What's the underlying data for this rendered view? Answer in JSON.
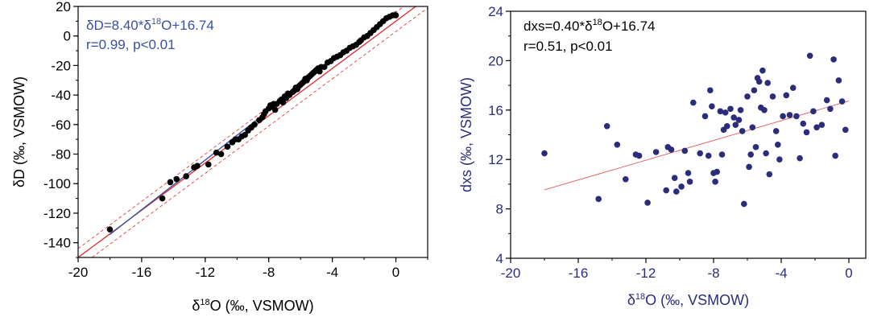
{
  "chart_data": [
    {
      "type": "scatter",
      "eq_prefix": "δD=8.40*δ",
      "eq_sup": "18",
      "eq_suffix": "O+16.74",
      "stats": "r=0.99, p<0.01",
      "xlabel_pre": "δ",
      "xlabel_sup": "18",
      "xlabel_post": "O (‰, VSMOW)",
      "ylabel": "δD (‰, VSMOW)",
      "xlim": [
        -20,
        2
      ],
      "ylim": [
        -150,
        20
      ],
      "xticks": [
        "-20",
        "-16",
        "-12",
        "-8",
        "-4",
        "0"
      ],
      "yticks": [
        "20",
        "0",
        "-20",
        "-40",
        "-60",
        "-80",
        "-100",
        "-120",
        "-140"
      ],
      "marker_color": "#000000",
      "text_color": "#3a4fa0",
      "fit_color": "#3a4fa0",
      "gmwl_color": "#e0292a",
      "gmwl": {
        "slope": 8,
        "intercept": 10
      },
      "fit": {
        "slope": 8.4,
        "intercept": 16.74
      },
      "points": [
        [
          -18.0,
          -131
        ],
        [
          -14.7,
          -110
        ],
        [
          -14.2,
          -99
        ],
        [
          -13.8,
          -97
        ],
        [
          -13.2,
          -95
        ],
        [
          -12.7,
          -89
        ],
        [
          -12.5,
          -88
        ],
        [
          -11.8,
          -87
        ],
        [
          -11.3,
          -79
        ],
        [
          -11.0,
          -80
        ],
        [
          -10.6,
          -75
        ],
        [
          -10.3,
          -72
        ],
        [
          -10.1,
          -70
        ],
        [
          -9.9,
          -70
        ],
        [
          -9.7,
          -68
        ],
        [
          -9.5,
          -67
        ],
        [
          -9.3,
          -64
        ],
        [
          -9.1,
          -62
        ],
        [
          -8.9,
          -60
        ],
        [
          -8.6,
          -57
        ],
        [
          -8.4,
          -55
        ],
        [
          -8.3,
          -53
        ],
        [
          -8.2,
          -51
        ],
        [
          -8.0,
          -49
        ],
        [
          -7.9,
          -47
        ],
        [
          -7.8,
          -48
        ],
        [
          -7.7,
          -46
        ],
        [
          -7.6,
          -50
        ],
        [
          -7.5,
          -46
        ],
        [
          -7.3,
          -44
        ],
        [
          -7.2,
          -43
        ],
        [
          -7.1,
          -45
        ],
        [
          -7.0,
          -41
        ],
        [
          -6.9,
          -42
        ],
        [
          -6.8,
          -39
        ],
        [
          -6.7,
          -40
        ],
        [
          -6.5,
          -38
        ],
        [
          -6.4,
          -37
        ],
        [
          -6.3,
          -35
        ],
        [
          -6.2,
          -36
        ],
        [
          -6.1,
          -34
        ],
        [
          -6.0,
          -33
        ],
        [
          -5.9,
          -32
        ],
        [
          -5.8,
          -31
        ],
        [
          -5.7,
          -29
        ],
        [
          -5.6,
          -30
        ],
        [
          -5.5,
          -28
        ],
        [
          -5.4,
          -27
        ],
        [
          -5.3,
          -26
        ],
        [
          -5.2,
          -25
        ],
        [
          -5.1,
          -24
        ],
        [
          -5.0,
          -23
        ],
        [
          -4.9,
          -22
        ],
        [
          -4.8,
          -24
        ],
        [
          -4.7,
          -21
        ],
        [
          -4.5,
          -21
        ],
        [
          -4.3,
          -18
        ],
        [
          -4.1,
          -17
        ],
        [
          -3.9,
          -15
        ],
        [
          -3.7,
          -14
        ],
        [
          -3.5,
          -13
        ],
        [
          -3.3,
          -11
        ],
        [
          -3.1,
          -10
        ],
        [
          -2.9,
          -8
        ],
        [
          -2.7,
          -7
        ],
        [
          -2.5,
          -6
        ],
        [
          -2.3,
          -4
        ],
        [
          -2.2,
          -3
        ],
        [
          -2.0,
          -1
        ],
        [
          -1.8,
          0
        ],
        [
          -1.6,
          2
        ],
        [
          -1.4,
          4
        ],
        [
          -1.2,
          6
        ],
        [
          -1.0,
          8
        ],
        [
          -0.8,
          10
        ],
        [
          -0.6,
          12
        ],
        [
          -0.4,
          13
        ],
        [
          -0.2,
          14
        ],
        [
          0.0,
          14
        ]
      ]
    },
    {
      "type": "scatter",
      "eq_prefix": "dxs=0.40*δ",
      "eq_sup": "18",
      "eq_suffix": "O+16.74",
      "stats": "r=0.51, p<0.01",
      "xlabel_pre": "δ",
      "xlabel_sup": "18",
      "xlabel_post": "O (‰, VSMOW)",
      "ylabel": "dxs (‰, VSMOW)",
      "xlim": [
        -20,
        1
      ],
      "ylim": [
        4,
        24
      ],
      "xticks": [
        "-20",
        "-16",
        "-12",
        "-8",
        "-4",
        "0"
      ],
      "yticks": [
        "24",
        "20",
        "16",
        "12",
        "8",
        "4"
      ],
      "marker_color": "#2b2c7a",
      "text_color": "#000000",
      "axis_label_color": "#2b2c7a",
      "fit_color": "#e05a5a",
      "fit": {
        "slope": 0.4,
        "intercept": 16.74
      },
      "points": [
        [
          -18.0,
          12.5
        ],
        [
          -14.8,
          8.8
        ],
        [
          -14.3,
          14.7
        ],
        [
          -13.7,
          13.2
        ],
        [
          -13.2,
          10.4
        ],
        [
          -12.6,
          12.4
        ],
        [
          -12.4,
          12.3
        ],
        [
          -11.9,
          8.5
        ],
        [
          -11.4,
          12.6
        ],
        [
          -10.8,
          9.5
        ],
        [
          -10.7,
          13.0
        ],
        [
          -10.5,
          12.8
        ],
        [
          -10.3,
          10.5
        ],
        [
          -10.2,
          9.4
        ],
        [
          -9.9,
          9.8
        ],
        [
          -9.7,
          12.7
        ],
        [
          -9.5,
          10.9
        ],
        [
          -9.4,
          10.2
        ],
        [
          -9.2,
          16.6
        ],
        [
          -8.8,
          12.5
        ],
        [
          -8.5,
          15.5
        ],
        [
          -8.3,
          12.3
        ],
        [
          -8.2,
          17.6
        ],
        [
          -8.1,
          16.3
        ],
        [
          -8.0,
          10.9
        ],
        [
          -7.9,
          10.2
        ],
        [
          -7.8,
          11.0
        ],
        [
          -7.6,
          15.9
        ],
        [
          -7.5,
          12.4
        ],
        [
          -7.4,
          14.4
        ],
        [
          -7.3,
          15.8
        ],
        [
          -7.2,
          14.7
        ],
        [
          -7.0,
          16.1
        ],
        [
          -6.8,
          15.4
        ],
        [
          -6.7,
          14.8
        ],
        [
          -6.5,
          15.2
        ],
        [
          -6.4,
          16.0
        ],
        [
          -6.3,
          14.3
        ],
        [
          -6.2,
          8.4
        ],
        [
          -6.0,
          17.1
        ],
        [
          -5.9,
          11.4
        ],
        [
          -5.8,
          12.4
        ],
        [
          -5.7,
          14.6
        ],
        [
          -5.6,
          17.6
        ],
        [
          -5.5,
          13.0
        ],
        [
          -5.4,
          18.6
        ],
        [
          -5.3,
          18.3
        ],
        [
          -5.2,
          16.2
        ],
        [
          -5.1,
          19.2
        ],
        [
          -5.0,
          16.0
        ],
        [
          -4.9,
          12.5
        ],
        [
          -4.8,
          18.2
        ],
        [
          -4.7,
          10.8
        ],
        [
          -4.5,
          17.1
        ],
        [
          -4.3,
          14.3
        ],
        [
          -4.2,
          13.2
        ],
        [
          -4.1,
          12.0
        ],
        [
          -3.9,
          15.5
        ],
        [
          -3.7,
          17.2
        ],
        [
          -3.5,
          15.6
        ],
        [
          -3.3,
          17.8
        ],
        [
          -3.1,
          15.5
        ],
        [
          -2.9,
          12.1
        ],
        [
          -2.7,
          14.9
        ],
        [
          -2.5,
          14.2
        ],
        [
          -2.3,
          20.4
        ],
        [
          -2.1,
          15.9
        ],
        [
          -1.9,
          14.6
        ],
        [
          -1.6,
          14.8
        ],
        [
          -1.3,
          16.8
        ],
        [
          -1.1,
          16.1
        ],
        [
          -0.9,
          20.1
        ],
        [
          -0.8,
          12.3
        ],
        [
          -0.6,
          18.4
        ],
        [
          -0.4,
          16.7
        ],
        [
          -0.2,
          14.4
        ]
      ]
    }
  ]
}
